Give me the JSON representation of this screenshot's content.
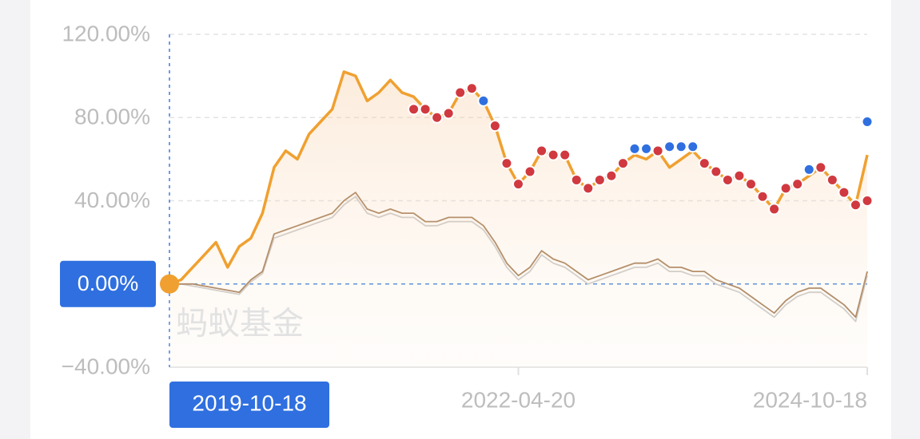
{
  "chart_data": {
    "type": "line",
    "watermark": "蚂蚁基金",
    "categories": [
      "2019-10-18",
      null,
      null,
      null,
      null,
      null,
      null,
      null,
      null,
      null,
      null,
      null,
      null,
      null,
      null,
      null,
      null,
      null,
      null,
      null,
      null,
      null,
      null,
      null,
      null,
      null,
      null,
      null,
      null,
      null,
      "2022-04-20",
      null,
      null,
      null,
      null,
      null,
      null,
      null,
      null,
      null,
      null,
      null,
      null,
      null,
      null,
      null,
      null,
      null,
      null,
      null,
      null,
      null,
      null,
      null,
      null,
      null,
      null,
      null,
      null,
      null,
      "2024-10-18"
    ],
    "series": [
      {
        "color": "#f0a030",
        "area": true,
        "values": [
          0,
          2,
          8,
          14,
          20,
          8,
          18,
          22,
          34,
          56,
          64,
          60,
          72,
          78,
          84,
          102,
          100,
          88,
          92,
          98,
          92,
          90,
          84,
          80,
          82,
          92,
          94,
          88,
          76,
          58,
          48,
          54,
          64,
          62,
          62,
          50,
          46,
          50,
          52,
          58,
          62,
          60,
          64,
          56,
          60,
          64,
          58,
          54,
          50,
          52,
          48,
          42,
          36,
          46,
          48,
          52,
          56,
          50,
          44,
          38,
          62
        ]
      },
      {
        "color": "#a07850",
        "values": [
          0,
          0,
          0,
          -1,
          -2,
          -3,
          -4,
          2,
          6,
          24,
          26,
          28,
          30,
          32,
          34,
          40,
          44,
          36,
          34,
          36,
          34,
          34,
          30,
          30,
          32,
          32,
          32,
          28,
          20,
          10,
          4,
          8,
          16,
          12,
          10,
          6,
          2,
          4,
          6,
          8,
          10,
          10,
          12,
          8,
          8,
          6,
          6,
          2,
          0,
          -2,
          -6,
          -10,
          -14,
          -8,
          -4,
          -2,
          -2,
          -6,
          -10,
          -16,
          6
        ]
      },
      {
        "color": "#c8c8c8",
        "values": [
          0,
          0,
          -1,
          -2,
          -3,
          -4,
          -5,
          1,
          5,
          22,
          24,
          26,
          28,
          30,
          32,
          38,
          42,
          34,
          32,
          34,
          32,
          32,
          28,
          28,
          30,
          30,
          30,
          26,
          18,
          8,
          2,
          6,
          14,
          10,
          8,
          4,
          0,
          2,
          4,
          6,
          8,
          8,
          10,
          6,
          6,
          4,
          4,
          0,
          -2,
          -4,
          -8,
          -12,
          -16,
          -10,
          -6,
          -4,
          -4,
          -8,
          -12,
          -18,
          4
        ]
      },
      {
        "color": "#d0393f",
        "dots": true,
        "values": [
          null,
          null,
          null,
          null,
          null,
          null,
          null,
          null,
          null,
          null,
          null,
          null,
          null,
          null,
          null,
          null,
          null,
          null,
          null,
          null,
          null,
          84,
          84,
          80,
          82,
          92,
          94,
          null,
          76,
          58,
          48,
          54,
          64,
          62,
          62,
          50,
          46,
          50,
          52,
          58,
          null,
          null,
          64,
          null,
          null,
          null,
          58,
          54,
          50,
          52,
          48,
          42,
          36,
          46,
          48,
          null,
          56,
          50,
          44,
          38,
          40
        ]
      },
      {
        "color": "#2f6fe0",
        "dots": true,
        "values": [
          null,
          null,
          null,
          null,
          null,
          null,
          null,
          null,
          null,
          null,
          null,
          null,
          null,
          null,
          null,
          null,
          null,
          null,
          null,
          null,
          null,
          null,
          null,
          null,
          null,
          null,
          null,
          88,
          null,
          null,
          null,
          null,
          null,
          null,
          null,
          null,
          null,
          null,
          null,
          null,
          65,
          65,
          null,
          66,
          66,
          66,
          null,
          null,
          null,
          null,
          null,
          null,
          null,
          null,
          null,
          55,
          null,
          null,
          null,
          null,
          78
        ]
      }
    ],
    "ylim": [
      -40,
      120
    ],
    "yticks": [
      {
        "value": 120,
        "label": "120.00%"
      },
      {
        "value": 80,
        "label": "80.00%"
      },
      {
        "value": 40,
        "label": "40.00%"
      },
      {
        "value": 0,
        "label": "0.00%"
      },
      {
        "value": -40,
        "label": "−40.00%"
      }
    ],
    "grid": true
  }
}
